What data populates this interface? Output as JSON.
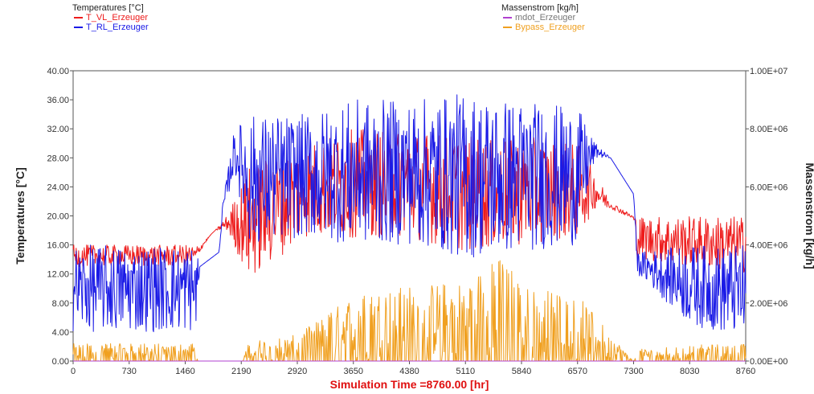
{
  "legend_left": {
    "title": "Temperatures [°C]",
    "items": [
      {
        "label": "T_VL_Erzeuger",
        "color": "#ee1c1c"
      },
      {
        "label": "T_RL_Erzeuger",
        "color": "#1a1ae6"
      }
    ]
  },
  "legend_right": {
    "title": "Massenstrom [kg/h]",
    "items": [
      {
        "label": "mdot_Erzeuger",
        "color": "#b040d0"
      },
      {
        "label": "Bypass_Erzeuger",
        "color": "#f0a020"
      }
    ]
  },
  "chart_data": {
    "type": "line",
    "xlabel": "Simulation Time =8760.00 [hr]",
    "ylabel": "Temperatures [°C]",
    "y2label": "Massenstrom [kg/h]",
    "xlim": [
      0,
      8760
    ],
    "ylim": [
      0,
      40
    ],
    "y2lim": [
      0,
      10000000
    ],
    "x_ticks": [
      "0",
      "730",
      "1460",
      "2190",
      "2920",
      "3650",
      "4380",
      "5110",
      "5840",
      "6570",
      "7300",
      "8030",
      "8760"
    ],
    "y_ticks": [
      "0.00",
      "4.00",
      "8.00",
      "12.00",
      "16.00",
      "20.00",
      "24.00",
      "28.00",
      "32.00",
      "36.00",
      "40.00"
    ],
    "y2_ticks": [
      "0.00E+00",
      "2.00E+06",
      "4.00E+06",
      "6.00E+06",
      "8.00E+06",
      "1.00E+07"
    ],
    "grid": false,
    "colors": {
      "xlabel": "#e01010",
      "axis": "#333333"
    },
    "series": [
      {
        "name": "T_VL_Erzeuger",
        "axis": "left",
        "color": "#ee1c1c",
        "envelope": {
          "x": [
            0,
            1600,
            1650,
            1800,
            1850,
            2000,
            2300,
            3000,
            3650,
            4380,
            5110,
            5840,
            6570,
            6800,
            7000,
            7300,
            7350,
            8030,
            8760
          ],
          "low": [
            13,
            13,
            15,
            17.5,
            18,
            18,
            11,
            17,
            17,
            17,
            15,
            16,
            17,
            21,
            21,
            19.5,
            14,
            13,
            12
          ],
          "high": [
            16,
            16,
            16,
            17.5,
            18,
            20,
            27,
            30,
            32,
            32,
            31,
            31,
            30,
            26,
            22,
            20,
            20,
            20,
            20
          ]
        }
      },
      {
        "name": "T_RL_Erzeuger",
        "axis": "left",
        "color": "#1a1ae6",
        "envelope": {
          "x": [
            0,
            1600,
            1650,
            1900,
            1950,
            2100,
            2300,
            3000,
            3650,
            4380,
            5110,
            5840,
            6570,
            6800,
            7000,
            7300,
            7350,
            8030,
            8760
          ],
          "low": [
            4,
            4,
            13,
            15,
            20,
            26,
            16,
            17,
            16,
            16,
            14,
            15,
            16,
            28,
            28,
            23,
            12,
            5,
            3
          ],
          "high": [
            16,
            16,
            13,
            15,
            22,
            32,
            34,
            34,
            36,
            36,
            37,
            36,
            35,
            30,
            28,
            23,
            15,
            16,
            16
          ]
        }
      },
      {
        "name": "mdot_Erzeuger",
        "axis": "right",
        "color": "#b040d0",
        "envelope": {
          "x": [
            0,
            8760
          ],
          "low": [
            0,
            0
          ],
          "high": [
            0,
            0
          ]
        }
      },
      {
        "name": "Bypass_Erzeuger",
        "axis": "right",
        "color": "#f0a020",
        "envelope": {
          "x": [
            0,
            1600,
            1620,
            2200,
            2300,
            2920,
            3650,
            4380,
            5110,
            5600,
            5840,
            6570,
            7300,
            7350,
            8030,
            8760
          ],
          "low": [
            0,
            0,
            0,
            0,
            0,
            0,
            0,
            0,
            0,
            0,
            0,
            0,
            0,
            0,
            0,
            0
          ],
          "high": [
            600000,
            600000,
            0,
            0,
            700000,
            900000,
            2300000,
            2600000,
            2800000,
            3700000,
            2600000,
            2300000,
            0,
            400000,
            550000,
            600000
          ]
        }
      }
    ]
  }
}
